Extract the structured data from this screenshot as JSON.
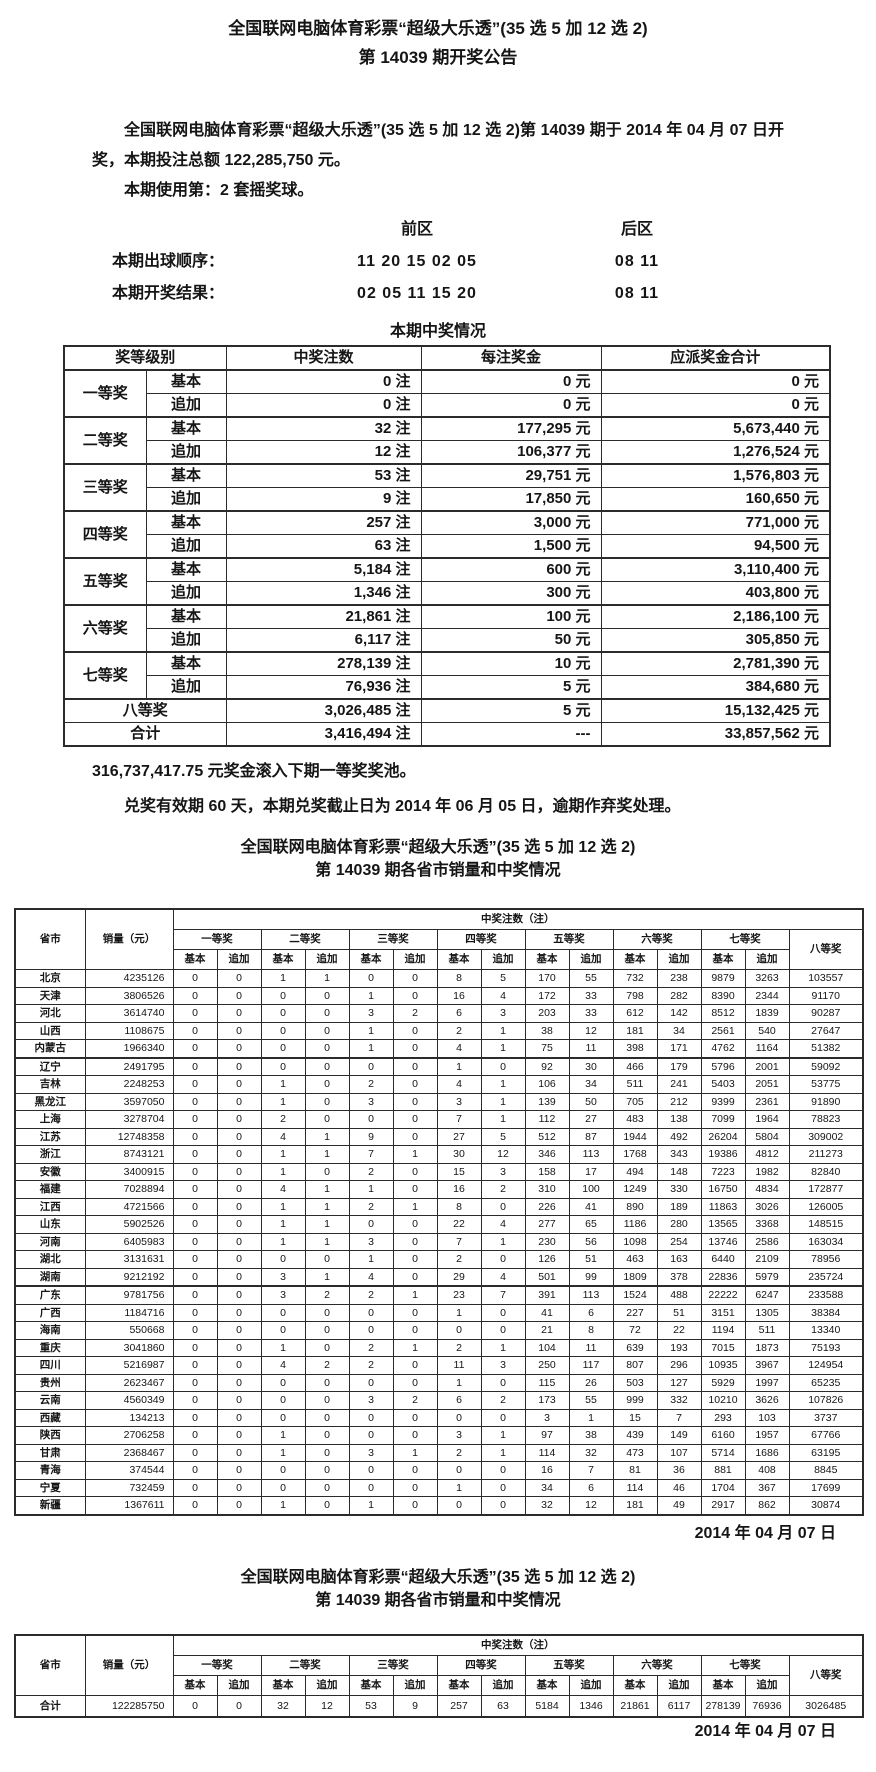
{
  "announcement": {
    "title1": "全国联网电脑体育彩票“超级大乐透”(35 选 5 加 12 选 2)",
    "title2": "第 14039 期开奖公告",
    "para1": "全国联网电脑体育彩票“超级大乐透”(35 选 5 加 12 选 2)第 14039 期于 2014 年 04 月 07 日开奖，本期投注总额 122,285,750 元。",
    "para2": "本期使用第：2 套摇奖球。",
    "zone_front": "前区",
    "zone_back": "后区",
    "draw_order_label": "本期出球顺序：",
    "draw_order_front": "11 20 15 02 05",
    "draw_order_back": "08 11",
    "result_label": "本期开奖结果：",
    "result_front": "02 05 11 15 20",
    "result_back": "08 11",
    "rollover_text": "316,737,417.75 元奖金滚入下期一等奖奖池。",
    "validity_text": "兑奖有效期 60 天，本期兑奖截止日为 2014 年 06 月 05 日，逾期作弃奖处理。"
  },
  "prize_table": {
    "title": "本期中奖情况",
    "headers": [
      "奖等级别",
      "中奖注数",
      "每注奖金",
      "应派奖金合计"
    ],
    "rows": [
      {
        "level": "一等奖",
        "sub": "基本",
        "count": "0 注",
        "per": "0 元",
        "total": "0 元"
      },
      {
        "sub": "追加",
        "count": "0 注",
        "per": "0 元",
        "total": "0 元"
      },
      {
        "level": "二等奖",
        "sub": "基本",
        "count": "32 注",
        "per": "177,295 元",
        "total": "5,673,440 元"
      },
      {
        "sub": "追加",
        "count": "12 注",
        "per": "106,377 元",
        "total": "1,276,524 元"
      },
      {
        "level": "三等奖",
        "sub": "基本",
        "count": "53 注",
        "per": "29,751 元",
        "total": "1,576,803 元"
      },
      {
        "sub": "追加",
        "count": "9 注",
        "per": "17,850 元",
        "total": "160,650 元"
      },
      {
        "level": "四等奖",
        "sub": "基本",
        "count": "257 注",
        "per": "3,000 元",
        "total": "771,000 元"
      },
      {
        "sub": "追加",
        "count": "63 注",
        "per": "1,500 元",
        "total": "94,500 元"
      },
      {
        "level": "五等奖",
        "sub": "基本",
        "count": "5,184 注",
        "per": "600 元",
        "total": "3,110,400 元"
      },
      {
        "sub": "追加",
        "count": "1,346 注",
        "per": "300 元",
        "total": "403,800 元"
      },
      {
        "level": "六等奖",
        "sub": "基本",
        "count": "21,861 注",
        "per": "100 元",
        "total": "2,186,100 元"
      },
      {
        "sub": "追加",
        "count": "6,117 注",
        "per": "50 元",
        "total": "305,850 元"
      },
      {
        "level": "七等奖",
        "sub": "基本",
        "count": "278,139 注",
        "per": "10 元",
        "total": "2,781,390 元"
      },
      {
        "sub": "追加",
        "count": "76,936 注",
        "per": "5 元",
        "total": "384,680 元"
      },
      {
        "level": "八等奖",
        "span": true,
        "count": "3,026,485 注",
        "per": "5 元",
        "total": "15,132,425 元"
      },
      {
        "level": "合计",
        "span": true,
        "count": "3,416,494 注",
        "per": "---",
        "total": "33,857,562 元"
      }
    ]
  },
  "win_table_header": {
    "col_province": "省市",
    "col_sales": "销量（元）",
    "col_win": "中奖注数（注）",
    "prize_headers": [
      "一等奖",
      "二等奖",
      "三等奖",
      "四等奖",
      "五等奖",
      "六等奖",
      "七等奖"
    ],
    "sub_basic": "基本",
    "sub_add": "追加",
    "col_eighth": "八等奖"
  },
  "province_section": {
    "title1": "全国联网电脑体育彩票“超级大乐透”(35 选 5 加 12 选 2)",
    "title2": "第 14039 期各省市销量和中奖情况",
    "rows": [
      [
        "北京",
        "4235126",
        0,
        0,
        1,
        1,
        0,
        0,
        8,
        5,
        170,
        55,
        732,
        238,
        9879,
        3263,
        103557
      ],
      [
        "天津",
        "3806526",
        0,
        0,
        0,
        0,
        1,
        0,
        16,
        4,
        172,
        33,
        798,
        282,
        8390,
        2344,
        91170
      ],
      [
        "河北",
        "3614740",
        0,
        0,
        0,
        0,
        3,
        2,
        6,
        3,
        203,
        33,
        612,
        142,
        8512,
        1839,
        90287
      ],
      [
        "山西",
        "1108675",
        0,
        0,
        0,
        0,
        1,
        0,
        2,
        1,
        38,
        12,
        181,
        34,
        2561,
        540,
        27647
      ],
      [
        "内蒙古",
        "1966340",
        0,
        0,
        0,
        0,
        1,
        0,
        4,
        1,
        75,
        11,
        398,
        171,
        4762,
        1164,
        51382
      ],
      [
        "辽宁",
        "2491795",
        0,
        0,
        0,
        0,
        0,
        0,
        1,
        0,
        92,
        30,
        466,
        179,
        5796,
        2001,
        59092
      ],
      [
        "吉林",
        "2248253",
        0,
        0,
        1,
        0,
        2,
        0,
        4,
        1,
        106,
        34,
        511,
        241,
        5403,
        2051,
        53775
      ],
      [
        "黑龙江",
        "3597050",
        0,
        0,
        1,
        0,
        3,
        0,
        3,
        1,
        139,
        50,
        705,
        212,
        9399,
        2361,
        91890
      ],
      [
        "上海",
        "3278704",
        0,
        0,
        2,
        0,
        0,
        0,
        7,
        1,
        112,
        27,
        483,
        138,
        7099,
        1964,
        78823
      ],
      [
        "江苏",
        "12748358",
        0,
        0,
        4,
        1,
        9,
        0,
        27,
        5,
        512,
        87,
        1944,
        492,
        26204,
        5804,
        309002
      ],
      [
        "浙江",
        "8743121",
        0,
        0,
        1,
        1,
        7,
        1,
        30,
        12,
        346,
        113,
        1768,
        343,
        19386,
        4812,
        211273
      ],
      [
        "安徽",
        "3400915",
        0,
        0,
        1,
        0,
        2,
        0,
        15,
        3,
        158,
        17,
        494,
        148,
        7223,
        1982,
        82840
      ],
      [
        "福建",
        "7028894",
        0,
        0,
        4,
        1,
        1,
        0,
        16,
        2,
        310,
        100,
        1249,
        330,
        16750,
        4834,
        172877
      ],
      [
        "江西",
        "4721566",
        0,
        0,
        1,
        1,
        2,
        1,
        8,
        0,
        226,
        41,
        890,
        189,
        11863,
        3026,
        126005
      ],
      [
        "山东",
        "5902526",
        0,
        0,
        1,
        1,
        0,
        0,
        22,
        4,
        277,
        65,
        1186,
        280,
        13565,
        3368,
        148515
      ],
      [
        "河南",
        "6405983",
        0,
        0,
        1,
        1,
        3,
        0,
        7,
        1,
        230,
        56,
        1098,
        254,
        13746,
        2586,
        163034
      ],
      [
        "湖北",
        "3131631",
        0,
        0,
        0,
        0,
        1,
        0,
        2,
        0,
        126,
        51,
        463,
        163,
        6440,
        2109,
        78956
      ],
      [
        "湖南",
        "9212192",
        0,
        0,
        3,
        1,
        4,
        0,
        29,
        4,
        501,
        99,
        1809,
        378,
        22836,
        5979,
        235724
      ],
      [
        "广东",
        "9781756",
        0,
        0,
        3,
        2,
        2,
        1,
        23,
        7,
        391,
        113,
        1524,
        488,
        22222,
        6247,
        233588
      ],
      [
        "广西",
        "1184716",
        0,
        0,
        0,
        0,
        0,
        0,
        1,
        0,
        41,
        6,
        227,
        51,
        3151,
        1305,
        38384
      ],
      [
        "海南",
        "550668",
        0,
        0,
        0,
        0,
        0,
        0,
        0,
        0,
        21,
        8,
        72,
        22,
        1194,
        511,
        13340
      ],
      [
        "重庆",
        "3041860",
        0,
        0,
        1,
        0,
        2,
        1,
        2,
        1,
        104,
        11,
        639,
        193,
        7015,
        1873,
        75193
      ],
      [
        "四川",
        "5216987",
        0,
        0,
        4,
        2,
        2,
        0,
        11,
        3,
        250,
        117,
        807,
        296,
        10935,
        3967,
        124954
      ],
      [
        "贵州",
        "2623467",
        0,
        0,
        0,
        0,
        0,
        0,
        1,
        0,
        115,
        26,
        503,
        127,
        5929,
        1997,
        65235
      ],
      [
        "云南",
        "4560349",
        0,
        0,
        0,
        0,
        3,
        2,
        6,
        2,
        173,
        55,
        999,
        332,
        10210,
        3626,
        107826
      ],
      [
        "西藏",
        "134213",
        0,
        0,
        0,
        0,
        0,
        0,
        0,
        0,
        3,
        1,
        15,
        7,
        293,
        103,
        3737
      ],
      [
        "陕西",
        "2706258",
        0,
        0,
        1,
        0,
        0,
        0,
        3,
        1,
        97,
        38,
        439,
        149,
        6160,
        1957,
        67766
      ],
      [
        "甘肃",
        "2368467",
        0,
        0,
        1,
        0,
        3,
        1,
        2,
        1,
        114,
        32,
        473,
        107,
        5714,
        1686,
        63195
      ],
      [
        "青海",
        "374544",
        0,
        0,
        0,
        0,
        0,
        0,
        0,
        0,
        16,
        7,
        81,
        36,
        881,
        408,
        8845
      ],
      [
        "宁夏",
        "732459",
        0,
        0,
        0,
        0,
        0,
        0,
        1,
        0,
        34,
        6,
        114,
        46,
        1704,
        367,
        17699
      ],
      [
        "新疆",
        "1367611",
        0,
        0,
        1,
        0,
        1,
        0,
        0,
        0,
        32,
        12,
        181,
        49,
        2917,
        862,
        30874
      ]
    ],
    "date": "2014 年 04 月 07 日"
  },
  "summary_section": {
    "title1": "全国联网电脑体育彩票“超级大乐透”(35 选 5 加 12 选 2)",
    "title2": "第 14039 期各省市销量和中奖情况",
    "rows": [
      [
        "合计",
        "122285750",
        0,
        0,
        32,
        12,
        53,
        9,
        257,
        63,
        5184,
        1346,
        21861,
        6117,
        278139,
        76936,
        3026485
      ]
    ],
    "date": "2014 年 04 月 07 日"
  }
}
